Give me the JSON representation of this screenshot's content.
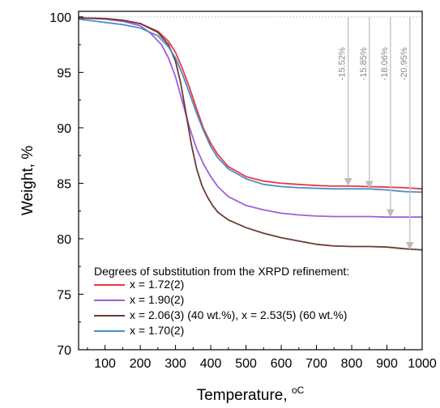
{
  "chart_data": {
    "type": "line",
    "title": "",
    "xlabel": "Temperature, ",
    "xlabel_unit": "oC",
    "ylabel": "Weight, %",
    "xlim": [
      25,
      1000
    ],
    "ylim": [
      70,
      100.5
    ],
    "xticks": [
      100,
      200,
      300,
      400,
      500,
      600,
      700,
      800,
      900,
      1000
    ],
    "yticks": [
      70,
      75,
      80,
      85,
      90,
      95,
      100
    ],
    "grid": false,
    "legend": {
      "title": "Degrees of substitution from the XRPD refinement:",
      "placement": "bottom-left"
    },
    "reference_line": {
      "y": 100,
      "style": "dotted",
      "color": "#cccccc"
    },
    "series": [
      {
        "name": "x = 1.72(2)",
        "color": "#e8383d",
        "x": [
          25,
          100,
          150,
          200,
          250,
          280,
          300,
          320,
          340,
          360,
          380,
          400,
          420,
          450,
          500,
          550,
          600,
          650,
          700,
          750,
          800,
          850,
          900,
          950,
          1000
        ],
        "y": [
          99.9,
          99.85,
          99.7,
          99.4,
          98.7,
          97.8,
          96.8,
          95.3,
          93.6,
          91.7,
          89.9,
          88.6,
          87.6,
          86.5,
          85.6,
          85.2,
          85.0,
          84.9,
          84.8,
          84.75,
          84.75,
          84.7,
          84.65,
          84.6,
          84.5
        ]
      },
      {
        "name": "x = 1.90(2)",
        "color": "#a25ddc",
        "x": [
          25,
          100,
          150,
          200,
          230,
          260,
          280,
          300,
          320,
          340,
          360,
          380,
          400,
          420,
          450,
          500,
          550,
          600,
          650,
          700,
          750,
          800,
          850,
          900,
          950,
          1000
        ],
        "y": [
          99.9,
          99.8,
          99.6,
          99.2,
          98.5,
          97.5,
          96.3,
          94.6,
          92.3,
          90.0,
          88.1,
          86.7,
          85.6,
          84.7,
          83.8,
          83.0,
          82.6,
          82.3,
          82.15,
          82.05,
          82.0,
          82.0,
          82.0,
          81.95,
          81.95,
          81.95
        ]
      },
      {
        "name": "x = 2.06(3) (40 wt.%), x = 2.53(5) (60 wt.%)",
        "color": "#6d3a35",
        "x": [
          25,
          100,
          150,
          200,
          250,
          280,
          300,
          315,
          330,
          345,
          360,
          375,
          390,
          405,
          420,
          450,
          500,
          550,
          600,
          650,
          700,
          750,
          800,
          850,
          900,
          950,
          1000
        ],
        "y": [
          99.9,
          99.85,
          99.7,
          99.4,
          98.6,
          97.5,
          96.0,
          94.0,
          91.3,
          88.5,
          86.3,
          84.8,
          83.8,
          83.0,
          82.4,
          81.7,
          81.0,
          80.5,
          80.1,
          79.8,
          79.5,
          79.35,
          79.3,
          79.3,
          79.25,
          79.1,
          79.0
        ]
      },
      {
        "name": "x = 1.70(2)",
        "color": "#4a8dc8",
        "x": [
          25,
          100,
          150,
          200,
          250,
          280,
          300,
          320,
          340,
          360,
          380,
          400,
          420,
          450,
          500,
          550,
          600,
          650,
          700,
          750,
          800,
          850,
          900,
          950,
          1000
        ],
        "y": [
          99.8,
          99.5,
          99.3,
          99.0,
          98.3,
          97.3,
          96.3,
          94.8,
          93.1,
          91.3,
          89.7,
          88.3,
          87.3,
          86.3,
          85.4,
          84.9,
          84.7,
          84.6,
          84.55,
          84.5,
          84.5,
          84.5,
          84.4,
          84.25,
          84.2
        ]
      }
    ],
    "annotations": [
      {
        "label": "-15.52%",
        "x": 790,
        "y_from": 100,
        "y_to": 84.75
      },
      {
        "label": "-15.85%",
        "x": 850,
        "y_from": 100,
        "y_to": 84.5
      },
      {
        "label": "-18.06%",
        "x": 910,
        "y_from": 100,
        "y_to": 81.95
      },
      {
        "label": "-20.95%",
        "x": 965,
        "y_from": 100,
        "y_to": 79.0
      }
    ]
  }
}
